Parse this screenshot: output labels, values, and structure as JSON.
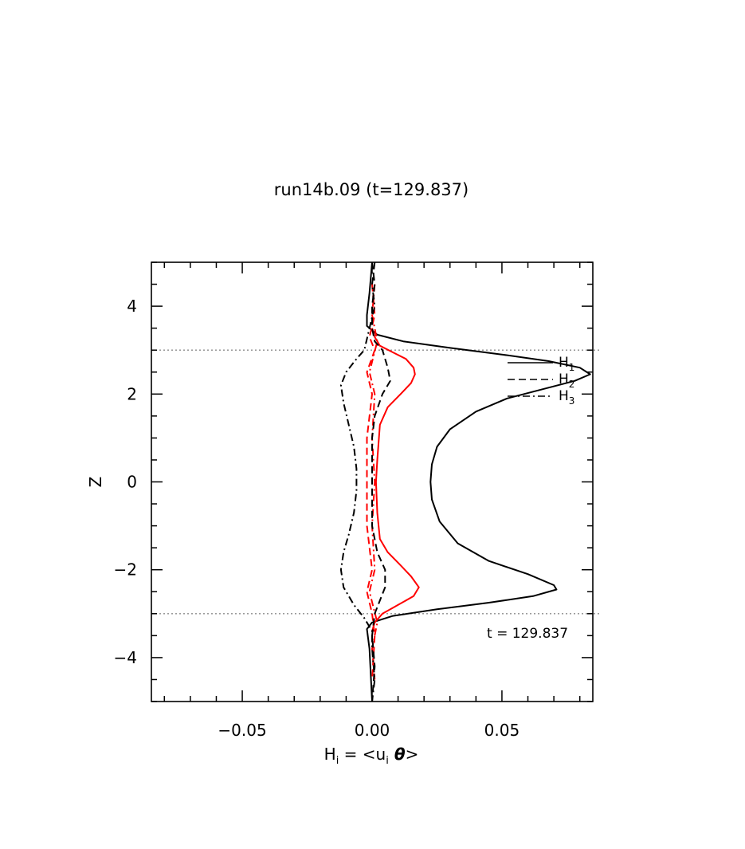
{
  "chart_data": {
    "type": "line",
    "title": "run14b.09 (t=129.837)",
    "xlabel": "H",
    "xlabel_sub": "i",
    "xlabel_rest": " = <u",
    "xlabel_sub2": "i",
    "xlabel_theta": " θ",
    "xlabel_end": ">",
    "ylabel": "Z",
    "xlim": [
      -0.085,
      0.085
    ],
    "ylim": [
      -5,
      5
    ],
    "xticks": [
      -0.05,
      0.0,
      0.05
    ],
    "xtick_labels": [
      "−0.05",
      "0.00",
      "0.05"
    ],
    "yticks": [
      4,
      2,
      0,
      -2,
      -4
    ],
    "ytick_labels": [
      "4",
      "2",
      "0",
      "−2",
      "−4"
    ],
    "grid": false,
    "hlines": [
      3,
      -3
    ],
    "annotation": "t = 129.837",
    "legend": {
      "position": "right",
      "entries": [
        {
          "label": "H",
          "sub": "1",
          "style": "solid"
        },
        {
          "label": "H",
          "sub": "2",
          "style": "dashed"
        },
        {
          "label": "H",
          "sub": "3",
          "style": "dashdot"
        }
      ]
    },
    "series": [
      {
        "name": "H1",
        "color": "#000000",
        "style": "solid",
        "points": [
          [
            0.0,
            5.0
          ],
          [
            -0.001,
            4.3
          ],
          [
            -0.002,
            3.8
          ],
          [
            -0.002,
            3.55
          ],
          [
            0.002,
            3.35
          ],
          [
            0.012,
            3.2
          ],
          [
            0.03,
            3.05
          ],
          [
            0.05,
            2.9
          ],
          [
            0.068,
            2.75
          ],
          [
            0.08,
            2.6
          ],
          [
            0.084,
            2.45
          ],
          [
            0.078,
            2.3
          ],
          [
            0.065,
            2.1
          ],
          [
            0.052,
            1.9
          ],
          [
            0.04,
            1.6
          ],
          [
            0.03,
            1.2
          ],
          [
            0.025,
            0.8
          ],
          [
            0.023,
            0.4
          ],
          [
            0.0225,
            0.0
          ],
          [
            0.023,
            -0.4
          ],
          [
            0.026,
            -0.9
          ],
          [
            0.033,
            -1.4
          ],
          [
            0.045,
            -1.8
          ],
          [
            0.06,
            -2.1
          ],
          [
            0.07,
            -2.35
          ],
          [
            0.071,
            -2.45
          ],
          [
            0.062,
            -2.6
          ],
          [
            0.045,
            -2.75
          ],
          [
            0.025,
            -2.9
          ],
          [
            0.008,
            -3.05
          ],
          [
            0.0,
            -3.2
          ],
          [
            -0.002,
            -3.35
          ],
          [
            -0.001,
            -3.8
          ],
          [
            0.0,
            -5.0
          ]
        ]
      },
      {
        "name": "H1 (red)",
        "color": "#ff0000",
        "style": "solid",
        "points": [
          [
            0.0,
            3.5
          ],
          [
            0.001,
            3.3
          ],
          [
            0.003,
            3.1
          ],
          [
            0.008,
            2.95
          ],
          [
            0.013,
            2.8
          ],
          [
            0.016,
            2.6
          ],
          [
            0.0165,
            2.45
          ],
          [
            0.015,
            2.25
          ],
          [
            0.011,
            2.0
          ],
          [
            0.006,
            1.7
          ],
          [
            0.003,
            1.3
          ],
          [
            0.002,
            0.5
          ],
          [
            0.0015,
            0.0
          ],
          [
            0.002,
            -0.7
          ],
          [
            0.003,
            -1.3
          ],
          [
            0.006,
            -1.6
          ],
          [
            0.011,
            -1.9
          ],
          [
            0.015,
            -2.15
          ],
          [
            0.018,
            -2.4
          ],
          [
            0.016,
            -2.6
          ],
          [
            0.01,
            -2.8
          ],
          [
            0.004,
            -3.0
          ],
          [
            0.001,
            -3.2
          ],
          [
            0.0,
            -3.4
          ]
        ]
      },
      {
        "name": "H2 (red)",
        "color": "#ff0000",
        "style": "dashed",
        "points": [
          [
            0.0,
            4.5
          ],
          [
            0.001,
            3.8
          ],
          [
            -0.001,
            3.3
          ],
          [
            0.001,
            3.0
          ],
          [
            -0.002,
            2.5
          ],
          [
            0.0,
            2.0
          ],
          [
            -0.002,
            1.0
          ],
          [
            -0.002,
            0.0
          ],
          [
            -0.002,
            -1.0
          ],
          [
            0.0,
            -2.0
          ],
          [
            -0.002,
            -2.5
          ],
          [
            0.0,
            -3.0
          ],
          [
            0.001,
            -3.5
          ],
          [
            0.0,
            -4.5
          ]
        ]
      },
      {
        "name": "H3 (red)",
        "color": "#ff0000",
        "style": "dashdot",
        "points": [
          [
            0.001,
            4.5
          ],
          [
            0.0,
            3.8
          ],
          [
            0.002,
            3.2
          ],
          [
            -0.001,
            2.5
          ],
          [
            0.001,
            2.0
          ],
          [
            0.0,
            1.0
          ],
          [
            0.001,
            0.0
          ],
          [
            0.0,
            -1.0
          ],
          [
            0.001,
            -2.0
          ],
          [
            -0.001,
            -2.5
          ],
          [
            0.002,
            -3.2
          ],
          [
            0.0,
            -3.8
          ],
          [
            0.001,
            -4.5
          ]
        ]
      },
      {
        "name": "H2",
        "color": "#000000",
        "style": "dashed",
        "points": [
          [
            0.0,
            5.0
          ],
          [
            0.001,
            4.5
          ],
          [
            0.0,
            4.0
          ],
          [
            0.0,
            3.5
          ],
          [
            0.001,
            3.2
          ],
          [
            0.004,
            3.0
          ],
          [
            0.006,
            2.6
          ],
          [
            0.007,
            2.3
          ],
          [
            0.004,
            2.0
          ],
          [
            0.001,
            1.5
          ],
          [
            0.0,
            1.0
          ],
          [
            0.0,
            0.0
          ],
          [
            0.0,
            -1.0
          ],
          [
            0.002,
            -1.6
          ],
          [
            0.005,
            -2.0
          ],
          [
            0.005,
            -2.4
          ],
          [
            0.003,
            -2.7
          ],
          [
            0.001,
            -3.0
          ],
          [
            0.0,
            -3.5
          ],
          [
            0.001,
            -4.2
          ],
          [
            0.0,
            -5.0
          ]
        ]
      },
      {
        "name": "H3",
        "color": "#000000",
        "style": "dashdot",
        "points": [
          [
            0.001,
            5.0
          ],
          [
            0.0,
            4.5
          ],
          [
            0.001,
            4.0
          ],
          [
            -0.001,
            3.5
          ],
          [
            -0.003,
            3.0
          ],
          [
            -0.006,
            2.8
          ],
          [
            -0.01,
            2.5
          ],
          [
            -0.012,
            2.2
          ],
          [
            -0.011,
            1.8
          ],
          [
            -0.009,
            1.3
          ],
          [
            -0.007,
            0.8
          ],
          [
            -0.006,
            0.3
          ],
          [
            -0.006,
            -0.2
          ],
          [
            -0.007,
            -0.7
          ],
          [
            -0.009,
            -1.2
          ],
          [
            -0.011,
            -1.6
          ],
          [
            -0.012,
            -2.0
          ],
          [
            -0.011,
            -2.4
          ],
          [
            -0.007,
            -2.8
          ],
          [
            -0.003,
            -3.1
          ],
          [
            0.0,
            -3.4
          ],
          [
            0.0,
            -3.8
          ],
          [
            0.001,
            -4.5
          ],
          [
            0.0,
            -5.0
          ]
        ]
      }
    ]
  }
}
